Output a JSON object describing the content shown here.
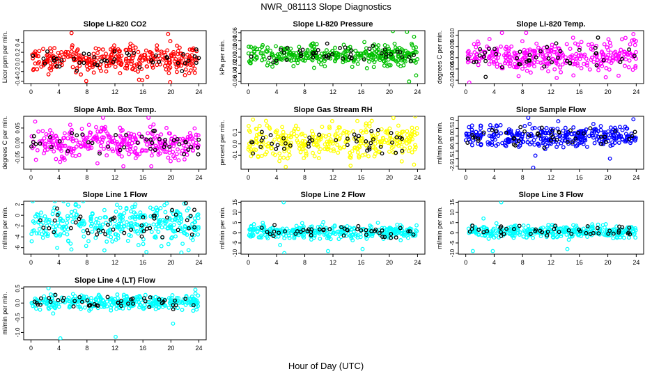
{
  "figure": {
    "title": "NWR_081113  Slope Diagnostics",
    "xlabel": "Hour of Day (UTC)"
  },
  "chart_data": [
    {
      "type": "scatter",
      "title": "Slope Li-820 CO2",
      "ylabel": "Licor ppm per min.",
      "color": "#ff0000",
      "xlim": [
        0,
        24
      ],
      "xticks": [
        0,
        4,
        8,
        12,
        16,
        20,
        24
      ],
      "ylim": [
        -0.45,
        0.65
      ],
      "yticks": [
        -0.4,
        -0.2,
        0.0,
        0.2,
        0.4
      ],
      "ytick_labels": [
        "-0.4",
        "-0.2",
        "0.0",
        "0.2",
        "0.4"
      ],
      "center": 0.05,
      "spread": 0.14,
      "n_points": 330,
      "n_highlight": 45,
      "outliers": [
        [
          5.8,
          0.6
        ],
        [
          7.9,
          -0.4
        ],
        [
          15.9,
          -0.38
        ],
        [
          19.6,
          0.58
        ],
        [
          19.9,
          -0.42
        ]
      ]
    },
    {
      "type": "scatter",
      "title": "Slope Li-820 Pressure",
      "ylabel": "kPa per min.",
      "color": "#00c000",
      "xlim": [
        0,
        24
      ],
      "xticks": [
        0,
        4,
        8,
        12,
        16,
        20,
        24
      ],
      "ylim": [
        -0.065,
        0.065
      ],
      "yticks": [
        -0.06,
        -0.04,
        -0.02,
        0.0,
        0.02,
        0.04,
        0.06
      ],
      "ytick_labels": [
        "-0.06",
        "-0.04",
        "-0.02",
        "0.00",
        "0.02",
        "0.04",
        "0.06"
      ],
      "center": 0.005,
      "spread": 0.013,
      "n_points": 330,
      "n_highlight": 45,
      "outliers": [
        [
          20.5,
          0.064
        ],
        [
          22.5,
          0.062
        ],
        [
          22.8,
          -0.06
        ],
        [
          23.8,
          -0.045
        ],
        [
          23.5,
          0.05
        ]
      ]
    },
    {
      "type": "scatter",
      "title": "Slope Li-820 Temp.",
      "ylabel": "degrees C per min.",
      "color": "#ff00ff",
      "xlim": [
        0,
        24
      ],
      "xticks": [
        0,
        4,
        8,
        12,
        16,
        20,
        24
      ],
      "ylim": [
        -0.0115,
        0.012
      ],
      "yticks": [
        -0.01,
        -0.005,
        0.0,
        0.005,
        0.01
      ],
      "ytick_labels": [
        "-0.010",
        "-0.005",
        "0.000",
        "0.005",
        "0.010"
      ],
      "center": 0.0005,
      "spread": 0.0035,
      "n_points": 330,
      "n_highlight": 45,
      "outliers": [
        [
          5.1,
          0.011
        ],
        [
          8.5,
          0.011
        ],
        [
          23.6,
          0.0105
        ],
        [
          0.5,
          -0.011
        ],
        [
          12.8,
          -0.009
        ]
      ]
    },
    {
      "type": "scatter",
      "title": "Slope Amb. Box Temp.",
      "ylabel": "degrees C per min.",
      "color": "#ff00ff",
      "xlim": [
        0,
        24
      ],
      "xticks": [
        0,
        4,
        8,
        12,
        16,
        20,
        24
      ],
      "ylim": [
        -0.09,
        0.09
      ],
      "yticks": [
        -0.05,
        0.0,
        0.05
      ],
      "ytick_labels": [
        "-0.05",
        "0.00",
        "0.05"
      ],
      "center": 0.0,
      "spread": 0.025,
      "n_points": 330,
      "n_highlight": 45,
      "outliers": [
        [
          10.3,
          0.085
        ],
        [
          16.8,
          0.085
        ],
        [
          13.2,
          -0.08
        ],
        [
          17.2,
          -0.08
        ],
        [
          9.5,
          -0.07
        ]
      ]
    },
    {
      "type": "scatter",
      "title": "Slope Gas Stream RH",
      "ylabel": "percent per min.",
      "color": "#ffff00",
      "xlim": [
        0,
        24
      ],
      "xticks": [
        0,
        4,
        8,
        12,
        16,
        20,
        24
      ],
      "ylim": [
        -0.22,
        0.24
      ],
      "yticks": [
        -0.1,
        0.0,
        0.1
      ],
      "ytick_labels": [
        "-0.1",
        "0.0",
        "0.1"
      ],
      "center": 0.02,
      "spread": 0.075,
      "n_points": 330,
      "n_highlight": 45,
      "outliers": [
        [
          5.3,
          -0.2
        ],
        [
          14.5,
          -0.19
        ],
        [
          23.5,
          -0.18
        ],
        [
          2.5,
          0.2
        ],
        [
          17.5,
          0.2
        ]
      ]
    },
    {
      "type": "scatter",
      "title": "Slope Sample Flow",
      "ylabel": "ml/min per min.",
      "color": "#0000ff",
      "xlim": [
        0,
        24
      ],
      "xticks": [
        0,
        4,
        8,
        12,
        16,
        20,
        24
      ],
      "ylim": [
        -2.2,
        1.3
      ],
      "yticks": [
        -2.0,
        -1.5,
        -1.0,
        -0.5,
        0.0,
        0.5,
        1.0
      ],
      "ytick_labels": [
        "-2.0",
        "-1.5",
        "-1.0",
        "-0.5",
        "0.0",
        "0.5",
        "1.0"
      ],
      "center": -0.05,
      "spread": 0.35,
      "n_points": 330,
      "n_highlight": 45,
      "outliers": [
        [
          9.5,
          -2.1
        ],
        [
          8.8,
          1.2
        ],
        [
          9.8,
          -1.3
        ],
        [
          20.3,
          -1.5
        ],
        [
          23.6,
          1.1
        ]
      ]
    },
    {
      "type": "scatter",
      "title": "Slope Line 1 Flow",
      "ylabel": "ml/min per min.",
      "color": "#00ffff",
      "xlim": [
        0,
        24
      ],
      "xticks": [
        0,
        4,
        8,
        12,
        16,
        20,
        24
      ],
      "ylim": [
        -7.2,
        2.6
      ],
      "yticks": [
        -6,
        -4,
        -2,
        0,
        2
      ],
      "ytick_labels": [
        "-6",
        "-4",
        "-2",
        "0",
        "2"
      ],
      "center": -1.6,
      "spread": 1.8,
      "n_points": 330,
      "n_highlight": 45,
      "outliers": [
        [
          16.5,
          -6.8
        ],
        [
          21.5,
          -6.9
        ],
        [
          10.5,
          -6.5
        ],
        [
          6.4,
          2.1
        ],
        [
          19.4,
          2.2
        ]
      ]
    },
    {
      "type": "scatter",
      "title": "Slope Line 2 Flow",
      "ylabel": "ml/min per min.",
      "color": "#00ffff",
      "xlim": [
        0,
        24
      ],
      "xticks": [
        0,
        4,
        8,
        12,
        16,
        20,
        24
      ],
      "ylim": [
        -10.5,
        15.5
      ],
      "yticks": [
        -10,
        -5,
        0,
        5,
        10,
        15
      ],
      "ytick_labels": [
        "-10",
        "-5",
        "0",
        "5",
        "10",
        "15"
      ],
      "center": 0.5,
      "spread": 1.6,
      "n_points": 330,
      "n_highlight": 45,
      "outliers": [
        [
          5.0,
          15
        ],
        [
          5.1,
          -10
        ],
        [
          11.3,
          -9
        ],
        [
          16.2,
          -8
        ],
        [
          4.5,
          -6
        ]
      ]
    },
    {
      "type": "scatter",
      "title": "Slope Line 3 Flow",
      "ylabel": "ml/min per min.",
      "color": "#00ffff",
      "xlim": [
        0,
        24
      ],
      "xticks": [
        0,
        4,
        8,
        12,
        16,
        20,
        24
      ],
      "ylim": [
        -10.5,
        15.5
      ],
      "yticks": [
        -10,
        -5,
        0,
        5,
        10,
        15
      ],
      "ytick_labels": [
        "-10",
        "-5",
        "0",
        "5",
        "10",
        "15"
      ],
      "center": 0.5,
      "spread": 1.6,
      "n_points": 330,
      "n_highlight": 45,
      "outliers": [
        [
          5.0,
          15
        ],
        [
          1.0,
          -9
        ],
        [
          3.8,
          -9
        ],
        [
          14.3,
          -8
        ],
        [
          2.5,
          7
        ]
      ]
    },
    {
      "type": "scatter",
      "title": "Slope Line 4 (LT) Flow",
      "ylabel": "ml/min per min.",
      "color": "#00ffff",
      "xlim": [
        0,
        24
      ],
      "xticks": [
        0,
        4,
        8,
        12,
        16,
        20,
        24
      ],
      "ylim": [
        -1.25,
        0.55
      ],
      "yticks": [
        -1.0,
        -0.5,
        0.0,
        0.5
      ],
      "ytick_labels": [
        "-1.0",
        "-0.5",
        "0.0",
        "0.5"
      ],
      "center": 0.02,
      "spread": 0.12,
      "n_points": 330,
      "n_highlight": 45,
      "outliers": [
        [
          4.2,
          -1.2
        ],
        [
          12.1,
          -1.15
        ],
        [
          20.3,
          -0.7
        ],
        [
          2.5,
          0.5
        ],
        [
          23.5,
          0.45
        ]
      ]
    }
  ]
}
